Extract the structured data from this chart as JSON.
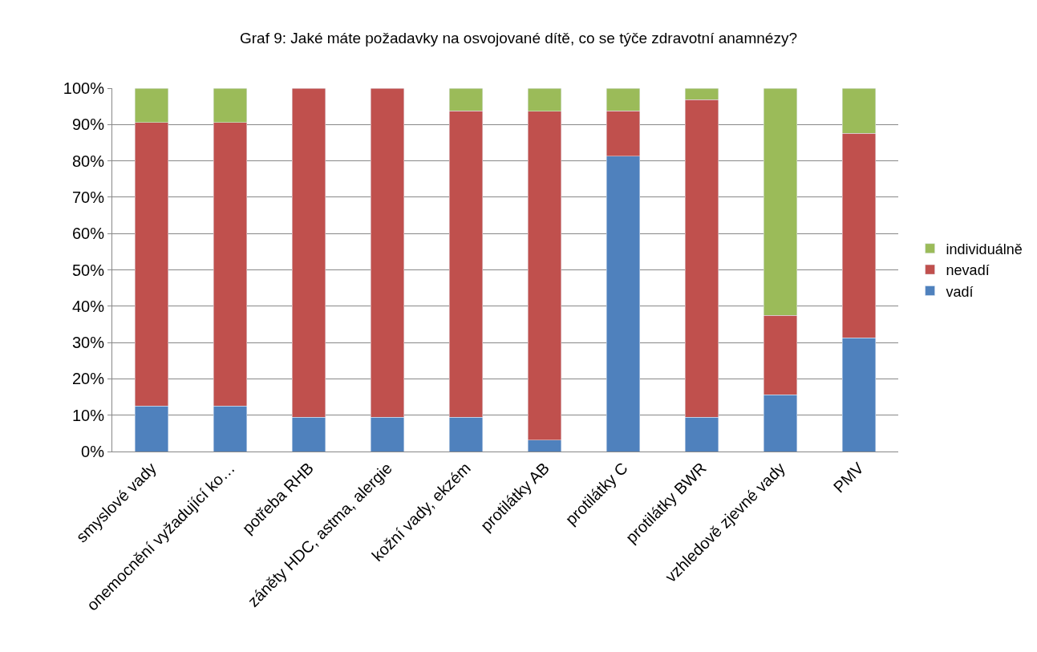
{
  "chart_data": {
    "type": "bar",
    "stacked": true,
    "title": "Graf 9: Jaké máte požadavky na osvojované dítě, co se týče zdravotní anamnézy?",
    "categories": [
      "smyslové vady",
      "onemocnění vyžadující ko…",
      "potřeba RHB",
      "záněty HDC, astma, alergie",
      "kožní vady, ekzém",
      "protilátky AB",
      "protilátky C",
      "protilátky BWR",
      "vzhledově zjevné vady",
      "PMV"
    ],
    "series": [
      {
        "name": "vadí",
        "color": "#4f81bd",
        "values": [
          12.5,
          12.5,
          9.4,
          9.4,
          9.4,
          3.1,
          81.3,
          9.4,
          15.6,
          31.3
        ]
      },
      {
        "name": "nevadí",
        "color": "#c0504d",
        "values": [
          78.1,
          78.1,
          90.6,
          90.6,
          84.4,
          90.6,
          12.5,
          87.5,
          21.9,
          56.3
        ]
      },
      {
        "name": "individuálně",
        "color": "#9bbb59",
        "values": [
          9.4,
          9.4,
          null,
          null,
          6.2,
          6.3,
          6.2,
          3.1,
          62.5,
          12.4
        ]
      }
    ],
    "ylim": [
      0,
      100
    ],
    "yticks": [
      {
        "value": 0,
        "label": "0%"
      },
      {
        "value": 10,
        "label": "10%"
      },
      {
        "value": 20,
        "label": "20%"
      },
      {
        "value": 30,
        "label": "30%"
      },
      {
        "value": 40,
        "label": "40%"
      },
      {
        "value": 50,
        "label": "50%"
      },
      {
        "value": 60,
        "label": "60%"
      },
      {
        "value": 70,
        "label": "70%"
      },
      {
        "value": 80,
        "label": "80%"
      },
      {
        "value": 90,
        "label": "90%"
      },
      {
        "value": 100,
        "label": "100%"
      }
    ],
    "grid": "y",
    "legend": "right"
  }
}
